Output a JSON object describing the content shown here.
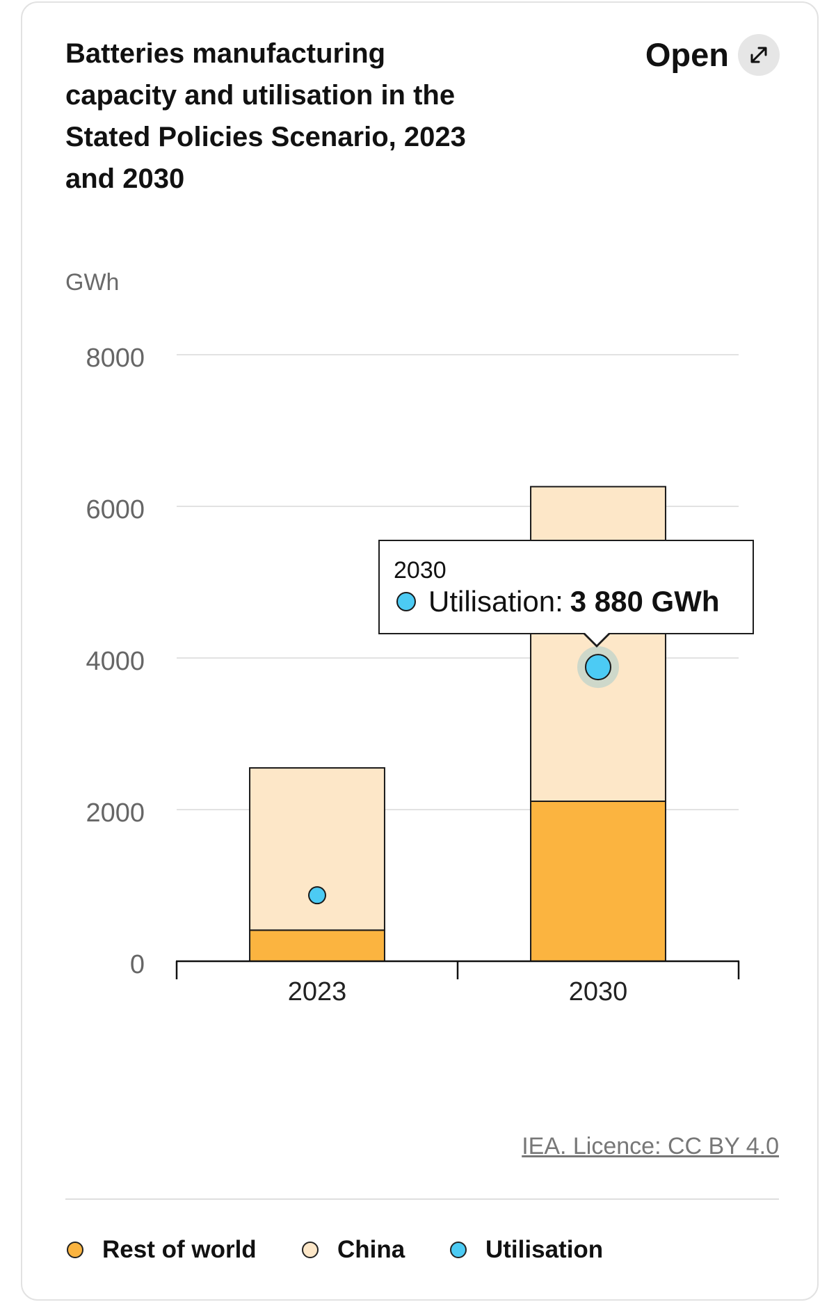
{
  "chart_data": {
    "type": "bar",
    "stacked": true,
    "title": "Batteries manufacturing capacity and utilisation in the Stated Policies Scenario, 2023 and 2030",
    "ylabel": "GWh",
    "xlabel": "",
    "categories": [
      "2023",
      "2030"
    ],
    "ylim": [
      0,
      8000
    ],
    "yticks": [
      0,
      2000,
      4000,
      6000,
      8000
    ],
    "grid": true,
    "legend": "bottom",
    "series": [
      {
        "name": "Rest of world",
        "values": [
          410,
          2110
        ],
        "color": "#fbb440"
      },
      {
        "name": "China",
        "values": [
          2140,
          4150
        ],
        "color": "#fde7c8"
      }
    ],
    "overlay": {
      "name": "Utilisation",
      "type": "scatter",
      "values": [
        870,
        3880
      ],
      "color": "#4ccbf4"
    },
    "tooltip": {
      "category": "2030",
      "label": "Utilisation:",
      "value": "3 880 GWh"
    }
  },
  "header": {
    "open_label": "Open",
    "open_icon": "expand-icon"
  },
  "footer": {
    "source_link": "IEA. Licence: CC BY 4.0"
  }
}
